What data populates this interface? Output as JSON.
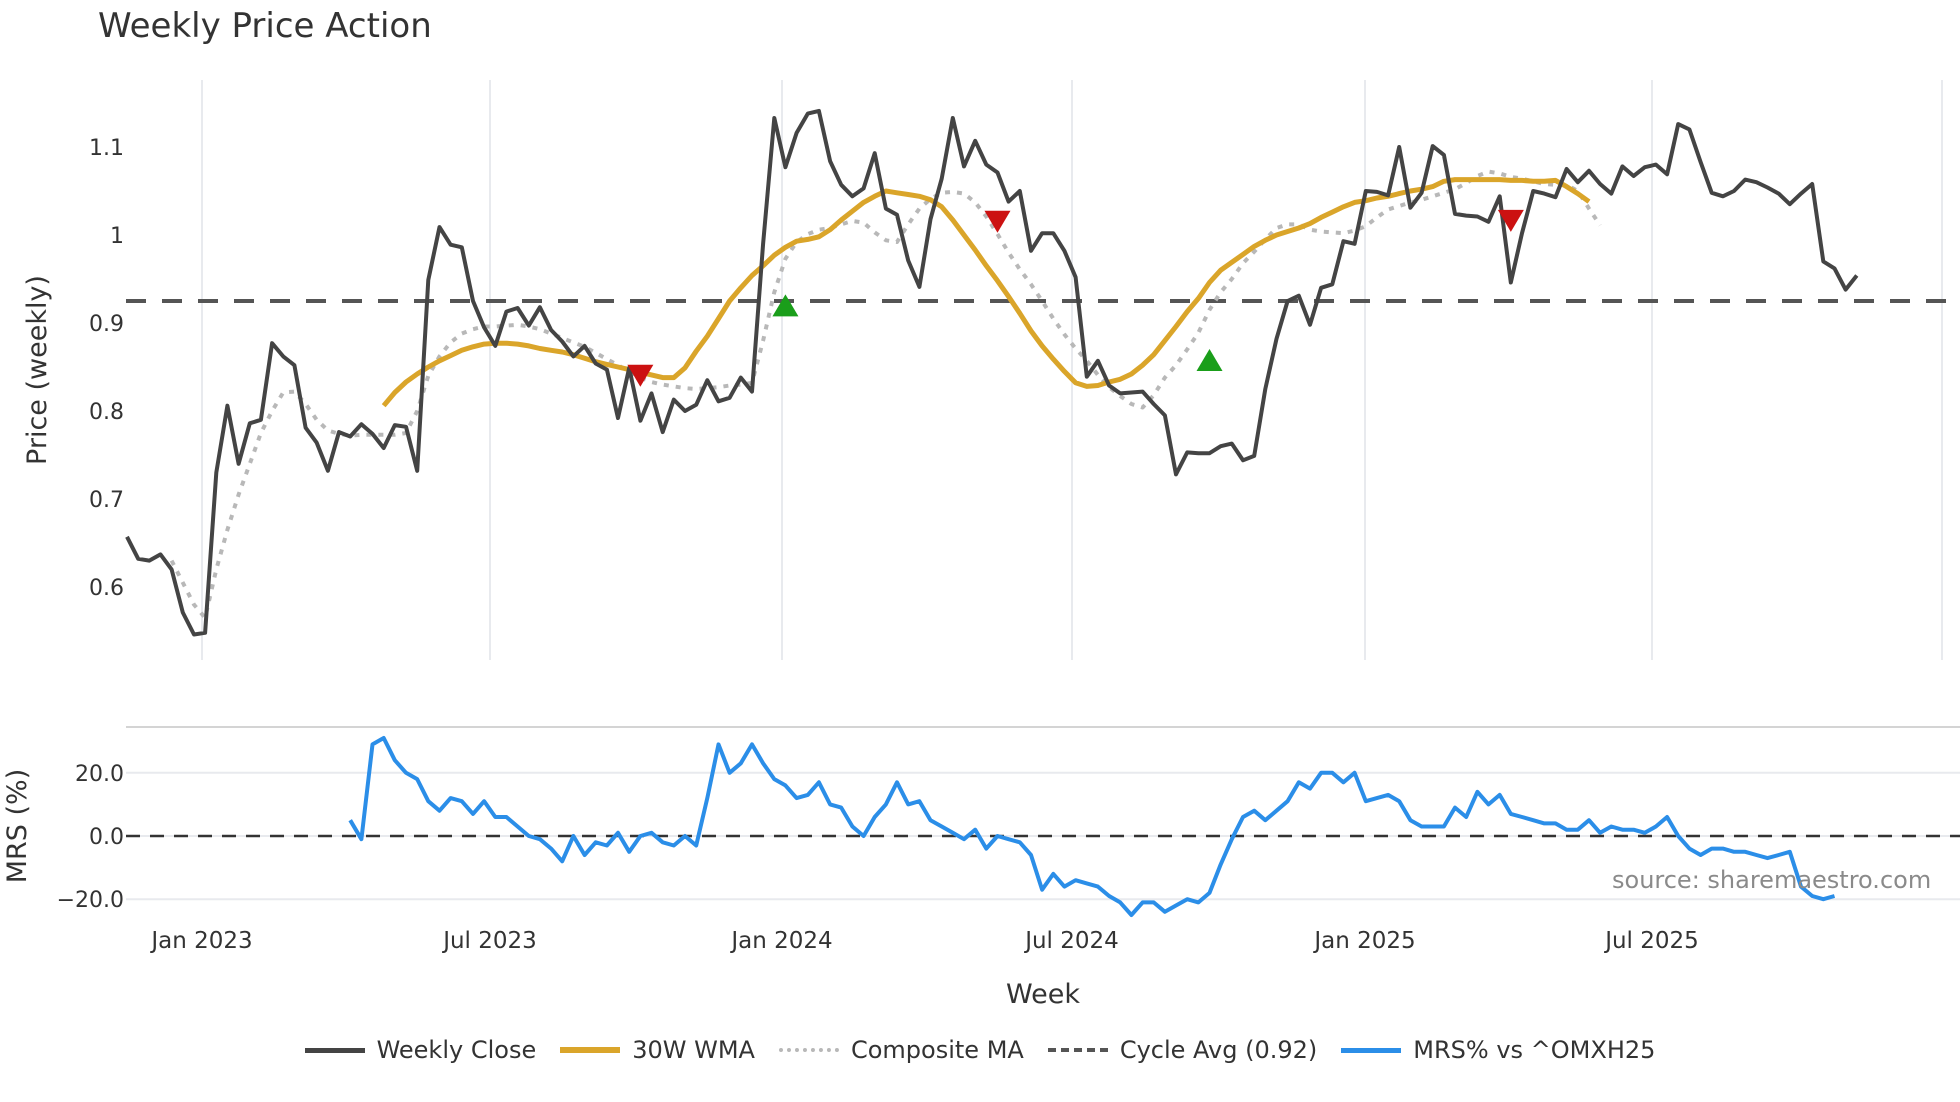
{
  "title": "Weekly Price Action",
  "source_label": "source: sharemaestro.com",
  "colors": {
    "close": "#444444",
    "wma": "#DAA52A",
    "composite": "#b8b8b8",
    "cycle": "#555555",
    "mrs": "#2B8EE8",
    "buy": "#1a9e1a",
    "sell": "#cc1111",
    "grid": "#e8eaee"
  },
  "legend": [
    {
      "key": "close",
      "label": "Weekly Close"
    },
    {
      "key": "wma",
      "label": "30W WMA"
    },
    {
      "key": "composite",
      "label": "Composite MA"
    },
    {
      "key": "cycle",
      "label": "Cycle Avg (0.92)"
    },
    {
      "key": "mrs",
      "label": "MRS% vs ^OMXH25"
    }
  ],
  "chart_data": [
    {
      "type": "line",
      "title": "Weekly Price Action",
      "xlabel": "Week",
      "ylabel": "Price (weekly)",
      "ylim": [
        0.52,
        1.18
      ],
      "yticks": [
        0.6,
        0.7,
        0.8,
        0.9,
        1.0,
        1.1
      ],
      "ytick_labels": [
        "0.6",
        "0.7",
        "0.8",
        "0.9",
        "1",
        "1.1"
      ],
      "xticks": [
        "Jan 2023",
        "Jul 2023",
        "Jan 2024",
        "Jul 2024",
        "Jan 2025",
        "Jul 2025"
      ],
      "grid": "vertical",
      "x_start": "2022-11-14",
      "x_unit": "week",
      "cycle_avg": 0.925,
      "series": [
        {
          "name": "Weekly Close",
          "start": 0,
          "values": [
            0.657,
            0.632,
            0.63,
            0.637,
            0.62,
            0.571,
            0.546,
            0.548,
            0.73,
            0.806,
            0.74,
            0.786,
            0.79,
            0.877,
            0.862,
            0.852,
            0.781,
            0.764,
            0.732,
            0.776,
            0.771,
            0.785,
            0.774,
            0.758,
            0.784,
            0.782,
            0.732,
            0.949,
            1.009,
            0.989,
            0.986,
            0.925,
            0.895,
            0.874,
            0.913,
            0.917,
            0.897,
            0.918,
            0.892,
            0.879,
            0.862,
            0.874,
            0.854,
            0.847,
            0.792,
            0.849,
            0.789,
            0.82,
            0.776,
            0.813,
            0.8,
            0.807,
            0.835,
            0.811,
            0.815,
            0.838,
            0.822,
            0.99,
            1.133,
            1.077,
            1.116,
            1.138,
            1.141,
            1.084,
            1.057,
            1.044,
            1.053,
            1.093,
            1.03,
            1.023,
            0.971,
            0.941,
            1.018,
            1.064,
            1.133,
            1.078,
            1.107,
            1.08,
            1.071,
            1.038,
            1.05,
            0.982,
            1.002,
            1.002,
            0.982,
            0.952,
            0.839,
            0.857,
            0.829,
            0.82,
            0.821,
            0.822,
            0.808,
            0.795,
            0.728,
            0.753,
            0.752,
            0.752,
            0.76,
            0.763,
            0.744,
            0.749,
            0.825,
            0.882,
            0.925,
            0.931,
            0.898,
            0.94,
            0.944,
            0.993,
            0.99,
            1.05,
            1.049,
            1.045,
            1.1,
            1.031,
            1.048,
            1.101,
            1.091,
            1.024,
            1.022,
            1.021,
            1.015,
            1.044,
            0.946,
            1.002,
            1.05,
            1.047,
            1.043,
            1.075,
            1.06,
            1.073,
            1.058,
            1.047,
            1.078,
            1.067,
            1.077,
            1.08,
            1.069,
            1.126,
            1.12,
            1.083,
            1.048,
            1.044,
            1.05,
            1.063,
            1.06,
            1.054,
            1.047,
            1.035,
            1.047,
            1.058,
            0.97,
            0.962,
            0.938,
            0.954
          ]
        },
        {
          "name": "30W WMA",
          "start": 23,
          "values": [
            0.806,
            0.821,
            0.833,
            0.842,
            0.85,
            0.857,
            0.863,
            0.869,
            0.873,
            0.876,
            0.877,
            0.877,
            0.876,
            0.874,
            0.871,
            0.869,
            0.867,
            0.864,
            0.86,
            0.856,
            0.853,
            0.85,
            0.847,
            0.844,
            0.841,
            0.838,
            0.838,
            0.849,
            0.868,
            0.885,
            0.905,
            0.925,
            0.94,
            0.954,
            0.965,
            0.977,
            0.986,
            0.993,
            0.995,
            0.998,
            1.006,
            1.017,
            1.027,
            1.037,
            1.044,
            1.05,
            1.048,
            1.046,
            1.044,
            1.04,
            1.032,
            1.017,
            1.0,
            0.983,
            0.965,
            0.948,
            0.93,
            0.911,
            0.891,
            0.874,
            0.859,
            0.845,
            0.832,
            0.828,
            0.829,
            0.833,
            0.836,
            0.842,
            0.852,
            0.864,
            0.88,
            0.896,
            0.913,
            0.928,
            0.946,
            0.96,
            0.969,
            0.978,
            0.987,
            0.994,
            1.0,
            1.004,
            1.008,
            1.013,
            1.02,
            1.026,
            1.032,
            1.037,
            1.039,
            1.042,
            1.044,
            1.047,
            1.05,
            1.052,
            1.055,
            1.061,
            1.063,
            1.063,
            1.063,
            1.063,
            1.063,
            1.062,
            1.062,
            1.061,
            1.061,
            1.062,
            1.055,
            1.047,
            1.038
          ]
        },
        {
          "name": "Composite MA",
          "start": 4,
          "values": [
            0.63,
            0.605,
            0.58,
            0.565,
            0.62,
            0.665,
            0.705,
            0.74,
            0.775,
            0.8,
            0.821,
            0.822,
            0.808,
            0.79,
            0.778,
            0.774,
            0.772,
            0.773,
            0.773,
            0.773,
            0.773,
            0.775,
            0.8,
            0.84,
            0.862,
            0.878,
            0.888,
            0.893,
            0.896,
            0.896,
            0.897,
            0.898,
            0.896,
            0.893,
            0.888,
            0.883,
            0.878,
            0.873,
            0.866,
            0.859,
            0.852,
            0.845,
            0.838,
            0.833,
            0.83,
            0.828,
            0.826,
            0.825,
            0.826,
            0.827,
            0.829,
            0.83,
            0.832,
            0.88,
            0.935,
            0.973,
            0.992,
            1.001,
            1.006,
            1.008,
            1.012,
            1.016,
            1.014,
            1.003,
            0.994,
            0.992,
            1.012,
            1.03,
            1.041,
            1.048,
            1.049,
            1.047,
            1.037,
            1.021,
            1.001,
            0.98,
            0.961,
            0.944,
            0.925,
            0.905,
            0.887,
            0.871,
            0.857,
            0.841,
            0.827,
            0.817,
            0.808,
            0.804,
            0.818,
            0.838,
            0.852,
            0.87,
            0.889,
            0.915,
            0.935,
            0.95,
            0.968,
            0.981,
            0.995,
            1.008,
            1.012,
            1.012,
            1.006,
            1.004,
            1.003,
            1.002,
            1.005,
            1.01,
            1.02,
            1.029,
            1.033,
            1.037,
            1.04,
            1.044,
            1.048,
            1.052,
            1.059,
            1.067,
            1.072,
            1.07,
            1.066,
            1.064,
            1.061,
            1.058,
            1.057,
            1.057,
            1.05,
            1.03,
            1.011
          ]
        },
        {
          "name": "Cycle Avg (0.92)",
          "constant": 0.925
        }
      ],
      "markers": [
        {
          "type": "sell",
          "x_index": 46,
          "y": 0.84
        },
        {
          "type": "buy",
          "x_index": 59,
          "y": 0.92
        },
        {
          "type": "sell",
          "x_index": 78,
          "y": 1.015
        },
        {
          "type": "buy",
          "x_index": 97,
          "y": 0.858
        },
        {
          "type": "sell",
          "x_index": 124,
          "y": 1.016
        }
      ]
    },
    {
      "type": "line",
      "ylabel": "MRS (%)",
      "ylim": [
        -27,
        34
      ],
      "yticks": [
        20,
        0,
        -20
      ],
      "ytick_labels": [
        "20.0",
        "0.0",
        "−20.0"
      ],
      "series": [
        {
          "name": "MRS% vs ^OMXH25",
          "start": 20,
          "values": [
            5,
            -1,
            29,
            31,
            24,
            20,
            18,
            11,
            8,
            12,
            11,
            7,
            11,
            6,
            6,
            3,
            0,
            -1,
            -4,
            -8,
            0,
            -6,
            -2,
            -3,
            1,
            -5,
            0,
            1,
            -2,
            -3,
            0,
            -3,
            12,
            29,
            20,
            23,
            29,
            23,
            18,
            16,
            12,
            13,
            17,
            10,
            9,
            3,
            0,
            6,
            10,
            17,
            10,
            11,
            5,
            3,
            1,
            -1,
            2,
            -4,
            0,
            -1,
            -2,
            -6,
            -17,
            -12,
            -16,
            -14,
            -15,
            -16,
            -19,
            -21,
            -25,
            -21,
            -21,
            -24,
            -22,
            -20,
            -21,
            -18,
            -9,
            -1,
            6,
            8,
            5,
            8,
            11,
            17,
            15,
            20,
            20,
            17,
            20,
            11,
            12,
            13,
            11,
            5,
            3,
            3,
            3,
            9,
            6,
            14,
            10,
            13,
            7,
            6,
            5,
            4,
            4,
            2,
            2,
            5,
            1,
            3,
            2,
            2,
            1,
            3,
            6,
            0,
            -4,
            -6,
            -4,
            -4,
            -5,
            -5,
            -6,
            -7,
            -6,
            -5,
            -16,
            -19,
            -20,
            -19
          ]
        }
      ],
      "zero_line": 0
    }
  ],
  "axes": {
    "x_label": "Week",
    "price_label": "Price (weekly)",
    "mrs_label": "MRS (%)"
  }
}
